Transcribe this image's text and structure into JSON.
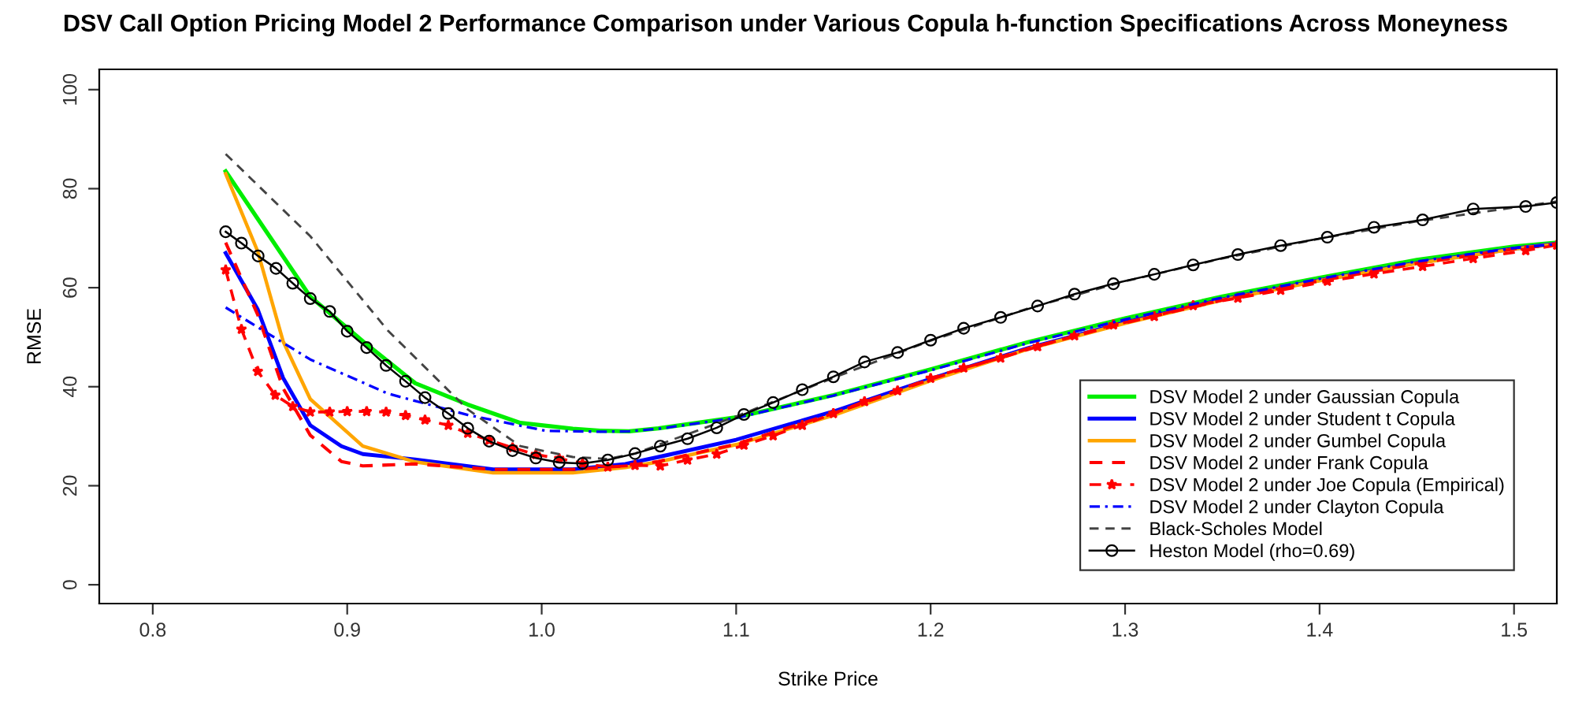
{
  "chart_data": {
    "type": "line",
    "title": "DSV Call Option Pricing Model 2 Performance Comparison under Various Copula h-function Specifications Across Moneyness",
    "xlabel": "Strike Price",
    "ylabel": "RMSE",
    "xlim": [
      0.7725,
      1.522
    ],
    "ylim": [
      -3.8,
      104.1
    ],
    "xticks": [
      {
        "value": 0.8,
        "label": "0.8"
      },
      {
        "value": 0.9,
        "label": "0.9"
      },
      {
        "value": 1.0,
        "label": "1.0"
      },
      {
        "value": 1.1,
        "label": "1.1"
      },
      {
        "value": 1.2,
        "label": "1.2"
      },
      {
        "value": 1.3,
        "label": "1.3"
      },
      {
        "value": 1.4,
        "label": "1.4"
      },
      {
        "value": 1.5,
        "label": "1.5"
      }
    ],
    "yticks": [
      0,
      20,
      40,
      60,
      80,
      100
    ],
    "grid": false,
    "legend": "bottom right",
    "series": [
      {
        "name": "DSV Model 2 under Gaussian Copula",
        "color": "#00ee00",
        "line_style": "solid",
        "marker": "none",
        "x": [
          0.8375,
          0.881,
          0.908,
          0.935,
          0.962,
          0.989,
          1.016,
          1.03,
          1.045,
          1.06,
          1.1,
          1.15,
          1.2,
          1.25,
          1.3,
          1.35,
          1.4,
          1.45,
          1.5,
          1.522
        ],
        "values": [
          83.5,
          58.2,
          49.2,
          40.7,
          36.4,
          32.7,
          31.5,
          31.1,
          31.0,
          31.6,
          33.8,
          38.3,
          43.5,
          49.0,
          53.8,
          58.2,
          62.0,
          65.6,
          68.3,
          69.1
        ]
      },
      {
        "name": "DSV Model 2 under Student t Copula",
        "color": "#0000ff",
        "line_style": "solid",
        "marker": "none",
        "x": [
          0.8375,
          0.854,
          0.867,
          0.881,
          0.897,
          0.908,
          0.935,
          0.975,
          1.016,
          1.043,
          1.06,
          1.1,
          1.15,
          1.2,
          1.25,
          1.3,
          1.35,
          1.4,
          1.45,
          1.5,
          1.522
        ],
        "values": [
          67.0,
          55.6,
          41.8,
          32.2,
          28.0,
          26.4,
          25.3,
          23.3,
          23.3,
          24.4,
          25.8,
          29.3,
          35.0,
          41.6,
          47.8,
          53.0,
          57.6,
          61.5,
          65.0,
          67.9,
          68.9
        ]
      },
      {
        "name": "DSV Model 2 under Gumbel Copula",
        "color": "#ffa500",
        "line_style": "solid",
        "marker": "none",
        "x": [
          0.8375,
          0.854,
          0.867,
          0.881,
          0.908,
          0.935,
          0.975,
          1.016,
          1.043,
          1.06,
          1.1,
          1.15,
          1.2,
          1.25,
          1.3,
          1.35,
          1.4,
          1.45,
          1.5,
          1.522
        ],
        "values": [
          83.0,
          67.3,
          49.2,
          37.5,
          28.0,
          24.8,
          22.6,
          22.6,
          23.7,
          24.8,
          28.3,
          34.2,
          41.2,
          47.6,
          52.8,
          57.5,
          61.4,
          64.9,
          67.8,
          68.8
        ]
      },
      {
        "name": "DSV Model 2 under Frank Copula",
        "color": "#ff0000",
        "line_style": "dashed",
        "marker": "none",
        "x": [
          0.8375,
          0.854,
          0.867,
          0.881,
          0.897,
          0.908,
          0.935,
          0.975,
          1.016,
          1.043,
          1.06,
          1.1,
          1.15,
          1.2,
          1.25,
          1.3,
          1.35,
          1.4,
          1.45,
          1.5,
          1.522
        ],
        "values": [
          69.1,
          54.5,
          39.7,
          30.2,
          24.9,
          24.0,
          24.4,
          23.3,
          23.3,
          24.0,
          24.9,
          28.4,
          34.6,
          41.5,
          47.7,
          52.9,
          57.5,
          61.4,
          64.9,
          67.8,
          68.8
        ]
      },
      {
        "name": "DSV Model 2 under Joe Copula (Empirical)",
        "color": "#ff0000",
        "line_style": "dashed",
        "marker": "star",
        "x": [
          0.8375,
          0.8456,
          0.854,
          0.863,
          0.872,
          0.881,
          0.891,
          0.9,
          0.91,
          0.92,
          0.93,
          0.94,
          0.952,
          0.962,
          0.973,
          0.985,
          0.997,
          1.009,
          1.021,
          1.034,
          1.048,
          1.061,
          1.075,
          1.09,
          1.104,
          1.119,
          1.134,
          1.15,
          1.166,
          1.183,
          1.2,
          1.217,
          1.236,
          1.255,
          1.274,
          1.294,
          1.315,
          1.335,
          1.358,
          1.38,
          1.404,
          1.428,
          1.453,
          1.479,
          1.506,
          1.522
        ],
        "values": [
          63.6,
          51.6,
          43.1,
          38.3,
          36.0,
          34.9,
          34.9,
          35.0,
          35.0,
          34.9,
          34.2,
          33.3,
          32.2,
          30.6,
          29.2,
          27.7,
          26.3,
          25.5,
          24.5,
          23.8,
          24.1,
          24.0,
          25.2,
          26.4,
          28.2,
          30.1,
          32.2,
          34.6,
          37.0,
          39.2,
          41.7,
          43.8,
          45.8,
          48.1,
          50.3,
          52.5,
          54.2,
          56.4,
          57.9,
          59.5,
          61.3,
          62.8,
          64.3,
          65.9,
          67.5,
          68.6
        ]
      },
      {
        "name": "DSV Model 2 under Clayton Copula",
        "color": "#0000ff",
        "line_style": "dashdot",
        "marker": "none",
        "x": [
          0.8375,
          0.881,
          0.921,
          0.962,
          1.002,
          1.03,
          1.045,
          1.06,
          1.1,
          1.15,
          1.2,
          1.25,
          1.3,
          1.35,
          1.4,
          1.45,
          1.5,
          1.522
        ],
        "values": [
          56.0,
          45.5,
          38.6,
          34.3,
          31.1,
          30.9,
          31.0,
          31.5,
          33.7,
          38.2,
          43.3,
          48.8,
          53.6,
          58.0,
          61.8,
          65.3,
          68.0,
          68.8
        ]
      },
      {
        "name": "Black-Scholes Model",
        "color": "#444444",
        "line_style": "dashed",
        "marker": "none",
        "x": [
          0.8375,
          0.881,
          0.921,
          0.962,
          0.989,
          1.016,
          1.034,
          1.048,
          1.061,
          1.1,
          1.15,
          1.2,
          1.25,
          1.3,
          1.35,
          1.4,
          1.45,
          1.5,
          1.522
        ],
        "values": [
          87.0,
          70.4,
          51.3,
          35.4,
          28.0,
          25.8,
          25.4,
          26.5,
          28.4,
          34.0,
          41.8,
          49.3,
          55.8,
          61.3,
          65.9,
          69.9,
          73.4,
          76.2,
          77.4
        ]
      },
      {
        "name": "Heston Model (rho=0.69)",
        "color": "#000000",
        "line_style": "solid",
        "marker": "circle",
        "x": [
          0.8375,
          0.8456,
          0.8542,
          0.8634,
          0.872,
          0.881,
          0.891,
          0.9,
          0.91,
          0.92,
          0.93,
          0.94,
          0.952,
          0.962,
          0.973,
          0.985,
          0.997,
          1.009,
          1.021,
          1.034,
          1.048,
          1.061,
          1.075,
          1.09,
          1.104,
          1.119,
          1.134,
          1.15,
          1.166,
          1.183,
          1.2,
          1.217,
          1.236,
          1.255,
          1.274,
          1.294,
          1.315,
          1.335,
          1.358,
          1.38,
          1.404,
          1.428,
          1.453,
          1.479,
          1.506,
          1.522
        ],
        "values": [
          71.3,
          69.0,
          66.4,
          63.9,
          60.9,
          57.8,
          55.2,
          51.2,
          47.9,
          44.3,
          41.1,
          37.8,
          34.6,
          31.6,
          29.0,
          27.1,
          25.6,
          24.7,
          24.5,
          25.2,
          26.5,
          28.0,
          29.5,
          31.7,
          34.4,
          36.8,
          39.4,
          42.0,
          45.0,
          46.9,
          49.4,
          51.8,
          54.0,
          56.3,
          58.7,
          60.8,
          62.7,
          64.6,
          66.7,
          68.5,
          70.2,
          72.2,
          73.7,
          75.9,
          76.4,
          77.2
        ]
      }
    ]
  }
}
